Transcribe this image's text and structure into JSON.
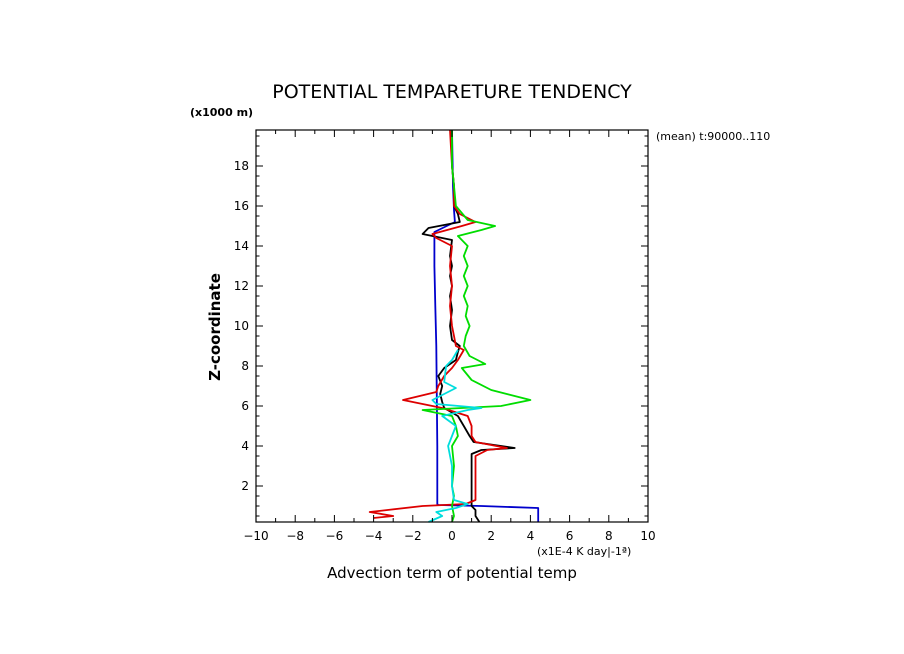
{
  "chart_data": {
    "type": "line",
    "title": "POTENTIAL TEMPARETURE TENDENCY",
    "subtitle": "(mean) t:90000..110",
    "xlabel": "Advection term of potential temp",
    "xunit": "(x1E-4 K day|-1ª)",
    "ylabel": "Z-coordinate",
    "yunit": "(x1000 m)",
    "xlim": [
      -10,
      10
    ],
    "ylim": [
      0.2,
      19.8
    ],
    "xticks": [
      -10,
      -8,
      -6,
      -4,
      -2,
      0,
      2,
      4,
      6,
      8,
      10
    ],
    "yticks": [
      2,
      4,
      6,
      8,
      10,
      12,
      14,
      16,
      18
    ],
    "grid": false,
    "series": [
      {
        "color": "#0000cc",
        "points": [
          [
            4.4,
            0.2
          ],
          [
            4.4,
            0.9
          ],
          [
            1.5,
            1.0
          ],
          [
            -0.7,
            1.05
          ],
          [
            -0.75,
            1.1
          ],
          [
            -0.75,
            4.0
          ],
          [
            -0.78,
            7.0
          ],
          [
            -0.8,
            9.0
          ],
          [
            -0.85,
            11.0
          ],
          [
            -0.9,
            13.0
          ],
          [
            -0.9,
            14.7
          ],
          [
            0.15,
            15.2
          ],
          [
            0.1,
            15.8
          ],
          [
            0.05,
            17.0
          ],
          [
            0.0,
            19.8
          ]
        ]
      },
      {
        "color": "#000000",
        "points": [
          [
            1.4,
            0.2
          ],
          [
            1.2,
            0.5
          ],
          [
            1.2,
            0.8
          ],
          [
            1.0,
            1.0
          ],
          [
            1.0,
            1.2
          ],
          [
            1.0,
            2.0
          ],
          [
            1.0,
            3.0
          ],
          [
            1.0,
            3.6
          ],
          [
            1.5,
            3.8
          ],
          [
            3.2,
            3.9
          ],
          [
            1.1,
            4.2
          ],
          [
            0.9,
            4.5
          ],
          [
            0.6,
            5.0
          ],
          [
            0.3,
            5.5
          ],
          [
            -0.4,
            5.9
          ],
          [
            -0.5,
            6.2
          ],
          [
            -0.6,
            6.6
          ],
          [
            -0.5,
            7.0
          ],
          [
            -0.7,
            7.5
          ],
          [
            -0.4,
            7.9
          ],
          [
            0.2,
            8.3
          ],
          [
            0.3,
            8.7
          ],
          [
            0.4,
            9.0
          ],
          [
            0.0,
            9.3
          ],
          [
            -0.1,
            10.0
          ],
          [
            0.0,
            10.8
          ],
          [
            -0.1,
            11.5
          ],
          [
            0.0,
            12.0
          ],
          [
            -0.1,
            12.5
          ],
          [
            0.0,
            13.0
          ],
          [
            -0.1,
            13.5
          ],
          [
            0.0,
            14.3
          ],
          [
            -1.5,
            14.6
          ],
          [
            -1.2,
            14.9
          ],
          [
            0.4,
            15.2
          ],
          [
            0.3,
            15.6
          ],
          [
            0.1,
            16.0
          ],
          [
            0.1,
            17.0
          ],
          [
            0.0,
            18.0
          ],
          [
            0.0,
            19.8
          ]
        ]
      },
      {
        "color": "#dd0000",
        "points": [
          [
            -4.0,
            0.4
          ],
          [
            -3.0,
            0.5
          ],
          [
            -4.2,
            0.7
          ],
          [
            -1.5,
            1.0
          ],
          [
            0.7,
            1.1
          ],
          [
            1.2,
            1.3
          ],
          [
            1.2,
            2.0
          ],
          [
            1.2,
            3.0
          ],
          [
            1.2,
            3.5
          ],
          [
            1.8,
            3.8
          ],
          [
            2.8,
            3.9
          ],
          [
            1.2,
            4.2
          ],
          [
            1.0,
            4.5
          ],
          [
            1.0,
            5.0
          ],
          [
            0.8,
            5.5
          ],
          [
            -0.5,
            5.9
          ],
          [
            -1.5,
            6.1
          ],
          [
            -2.5,
            6.3
          ],
          [
            -0.8,
            6.7
          ],
          [
            -0.7,
            7.0
          ],
          [
            -0.4,
            7.5
          ],
          [
            0.0,
            7.9
          ],
          [
            0.3,
            8.3
          ],
          [
            0.6,
            8.8
          ],
          [
            0.2,
            9.0
          ],
          [
            0.1,
            9.5
          ],
          [
            0.0,
            10.0
          ],
          [
            -0.1,
            11.0
          ],
          [
            0.0,
            12.0
          ],
          [
            -0.1,
            13.0
          ],
          [
            0.0,
            14.0
          ],
          [
            -0.8,
            14.4
          ],
          [
            -1.0,
            14.6
          ],
          [
            0.5,
            15.0
          ],
          [
            1.2,
            15.2
          ],
          [
            0.4,
            15.6
          ],
          [
            0.1,
            16.0
          ],
          [
            0.1,
            17.0
          ],
          [
            0.0,
            18.0
          ],
          [
            -0.1,
            19.8
          ]
        ]
      },
      {
        "color": "#00dd00",
        "points": [
          [
            0.0,
            0.2
          ],
          [
            0.1,
            0.5
          ],
          [
            0.0,
            1.0
          ],
          [
            0.1,
            1.5
          ],
          [
            0.0,
            2.0
          ],
          [
            0.1,
            3.0
          ],
          [
            0.0,
            4.0
          ],
          [
            0.3,
            4.5
          ],
          [
            0.2,
            5.0
          ],
          [
            0.0,
            5.5
          ],
          [
            -1.5,
            5.8
          ],
          [
            0.5,
            5.9
          ],
          [
            2.5,
            6.0
          ],
          [
            4.0,
            6.3
          ],
          [
            2.0,
            6.8
          ],
          [
            1.0,
            7.3
          ],
          [
            0.5,
            7.9
          ],
          [
            1.7,
            8.1
          ],
          [
            0.9,
            8.5
          ],
          [
            0.6,
            9.0
          ],
          [
            0.7,
            9.5
          ],
          [
            0.9,
            10.0
          ],
          [
            0.7,
            10.5
          ],
          [
            0.8,
            11.0
          ],
          [
            0.6,
            11.5
          ],
          [
            0.8,
            12.0
          ],
          [
            0.6,
            12.5
          ],
          [
            0.8,
            13.0
          ],
          [
            0.6,
            13.5
          ],
          [
            0.8,
            14.0
          ],
          [
            0.3,
            14.5
          ],
          [
            1.5,
            14.8
          ],
          [
            2.2,
            15.0
          ],
          [
            0.8,
            15.3
          ],
          [
            0.2,
            16.0
          ],
          [
            0.1,
            17.0
          ],
          [
            0.0,
            18.0
          ],
          [
            0.0,
            19.8
          ]
        ]
      },
      {
        "color": "#00dddd",
        "points": [
          [
            -1.2,
            0.2
          ],
          [
            -0.5,
            0.5
          ],
          [
            -0.8,
            0.7
          ],
          [
            0.2,
            0.9
          ],
          [
            0.8,
            1.1
          ],
          [
            0.1,
            1.3
          ],
          [
            0.0,
            2.0
          ],
          [
            0.0,
            3.0
          ],
          [
            -0.2,
            4.0
          ],
          [
            0.0,
            4.5
          ],
          [
            0.2,
            5.0
          ],
          [
            -0.5,
            5.5
          ],
          [
            0.8,
            5.8
          ],
          [
            1.5,
            5.9
          ],
          [
            -0.8,
            6.1
          ],
          [
            -1.0,
            6.3
          ],
          [
            0.2,
            6.9
          ],
          [
            -0.4,
            7.2
          ],
          [
            -0.3,
            8.0
          ],
          [
            0.0,
            8.3
          ],
          [
            0.3,
            8.8
          ]
        ]
      }
    ]
  }
}
